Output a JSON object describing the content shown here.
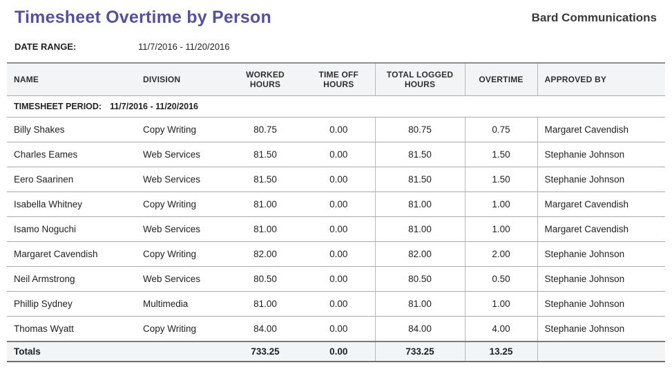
{
  "report": {
    "title": "Timesheet Overtime by Person",
    "company": "Bard Communications",
    "date_range_label": "DATE RANGE:",
    "date_range_value": "11/7/2016 - 11/20/2016"
  },
  "colors": {
    "title_accent": "#57519d",
    "header_background": "#f3f4f5",
    "row_border": "#a9a9a9",
    "column_border": "#b9b9b9"
  },
  "table": {
    "columns": [
      {
        "key": "name",
        "label": "NAME"
      },
      {
        "key": "division",
        "label": "DIVISION"
      },
      {
        "key": "worked_hours",
        "label": "WORKED HOURS"
      },
      {
        "key": "time_off_hours",
        "label": "TIME OFF HOURS"
      },
      {
        "key": "total_logged_hours",
        "label": "TOTAL LOGGED HOURS"
      },
      {
        "key": "overtime",
        "label": "OVERTIME"
      },
      {
        "key": "approved_by",
        "label": "APPROVED BY"
      }
    ],
    "period": {
      "label": "TIMESHEET PERIOD:",
      "value": "11/7/2016 - 11/20/2016"
    },
    "rows": [
      {
        "name": "Billy Shakes",
        "division": "Copy Writing",
        "worked_hours": "80.75",
        "time_off_hours": "0.00",
        "total_logged_hours": "80.75",
        "overtime": "0.75",
        "approved_by": "Margaret Cavendish"
      },
      {
        "name": "Charles Eames",
        "division": "Web Services",
        "worked_hours": "81.50",
        "time_off_hours": "0.00",
        "total_logged_hours": "81.50",
        "overtime": "1.50",
        "approved_by": "Stephanie Johnson"
      },
      {
        "name": "Eero Saarinen",
        "division": "Web Services",
        "worked_hours": "81.50",
        "time_off_hours": "0.00",
        "total_logged_hours": "81.50",
        "overtime": "1.50",
        "approved_by": "Stephanie Johnson"
      },
      {
        "name": "Isabella Whitney",
        "division": "Copy Writing",
        "worked_hours": "81.00",
        "time_off_hours": "0.00",
        "total_logged_hours": "81.00",
        "overtime": "1.00",
        "approved_by": "Margaret Cavendish"
      },
      {
        "name": "Isamo Noguchi",
        "division": "Web Services",
        "worked_hours": "81.00",
        "time_off_hours": "0.00",
        "total_logged_hours": "81.00",
        "overtime": "1.00",
        "approved_by": "Margaret Cavendish"
      },
      {
        "name": "Margaret Cavendish",
        "division": "Copy Writing",
        "worked_hours": "82.00",
        "time_off_hours": "0.00",
        "total_logged_hours": "82.00",
        "overtime": "2.00",
        "approved_by": "Stephanie Johnson"
      },
      {
        "name": "Neil Armstrong",
        "division": "Web Services",
        "worked_hours": "80.50",
        "time_off_hours": "0.00",
        "total_logged_hours": "80.50",
        "overtime": "0.50",
        "approved_by": "Stephanie Johnson"
      },
      {
        "name": "Phillip Sydney",
        "division": "Multimedia",
        "worked_hours": "81.00",
        "time_off_hours": "0.00",
        "total_logged_hours": "81.00",
        "overtime": "1.00",
        "approved_by": "Stephanie Johnson"
      },
      {
        "name": "Thomas Wyatt",
        "division": "Copy Writing",
        "worked_hours": "84.00",
        "time_off_hours": "0.00",
        "total_logged_hours": "84.00",
        "overtime": "4.00",
        "approved_by": "Stephanie Johnson"
      }
    ],
    "totals": {
      "name": "Totals",
      "division": "",
      "worked_hours": "733.25",
      "time_off_hours": "0.00",
      "total_logged_hours": "733.25",
      "overtime": "13.25",
      "approved_by": ""
    }
  }
}
